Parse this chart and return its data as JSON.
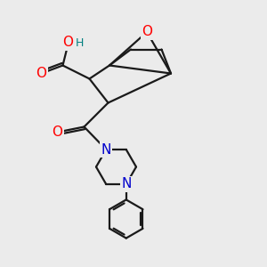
{
  "bg_color": "#ebebeb",
  "atom_color_O": "#ff0000",
  "atom_color_N": "#0000cc",
  "atom_color_H": "#008080",
  "line_color": "#1a1a1a",
  "line_width": 1.6,
  "font_size_atoms": 11,
  "figsize": [
    3.0,
    3.0
  ],
  "dpi": 100,
  "xlim": [
    0,
    10
  ],
  "ylim": [
    0,
    10
  ]
}
